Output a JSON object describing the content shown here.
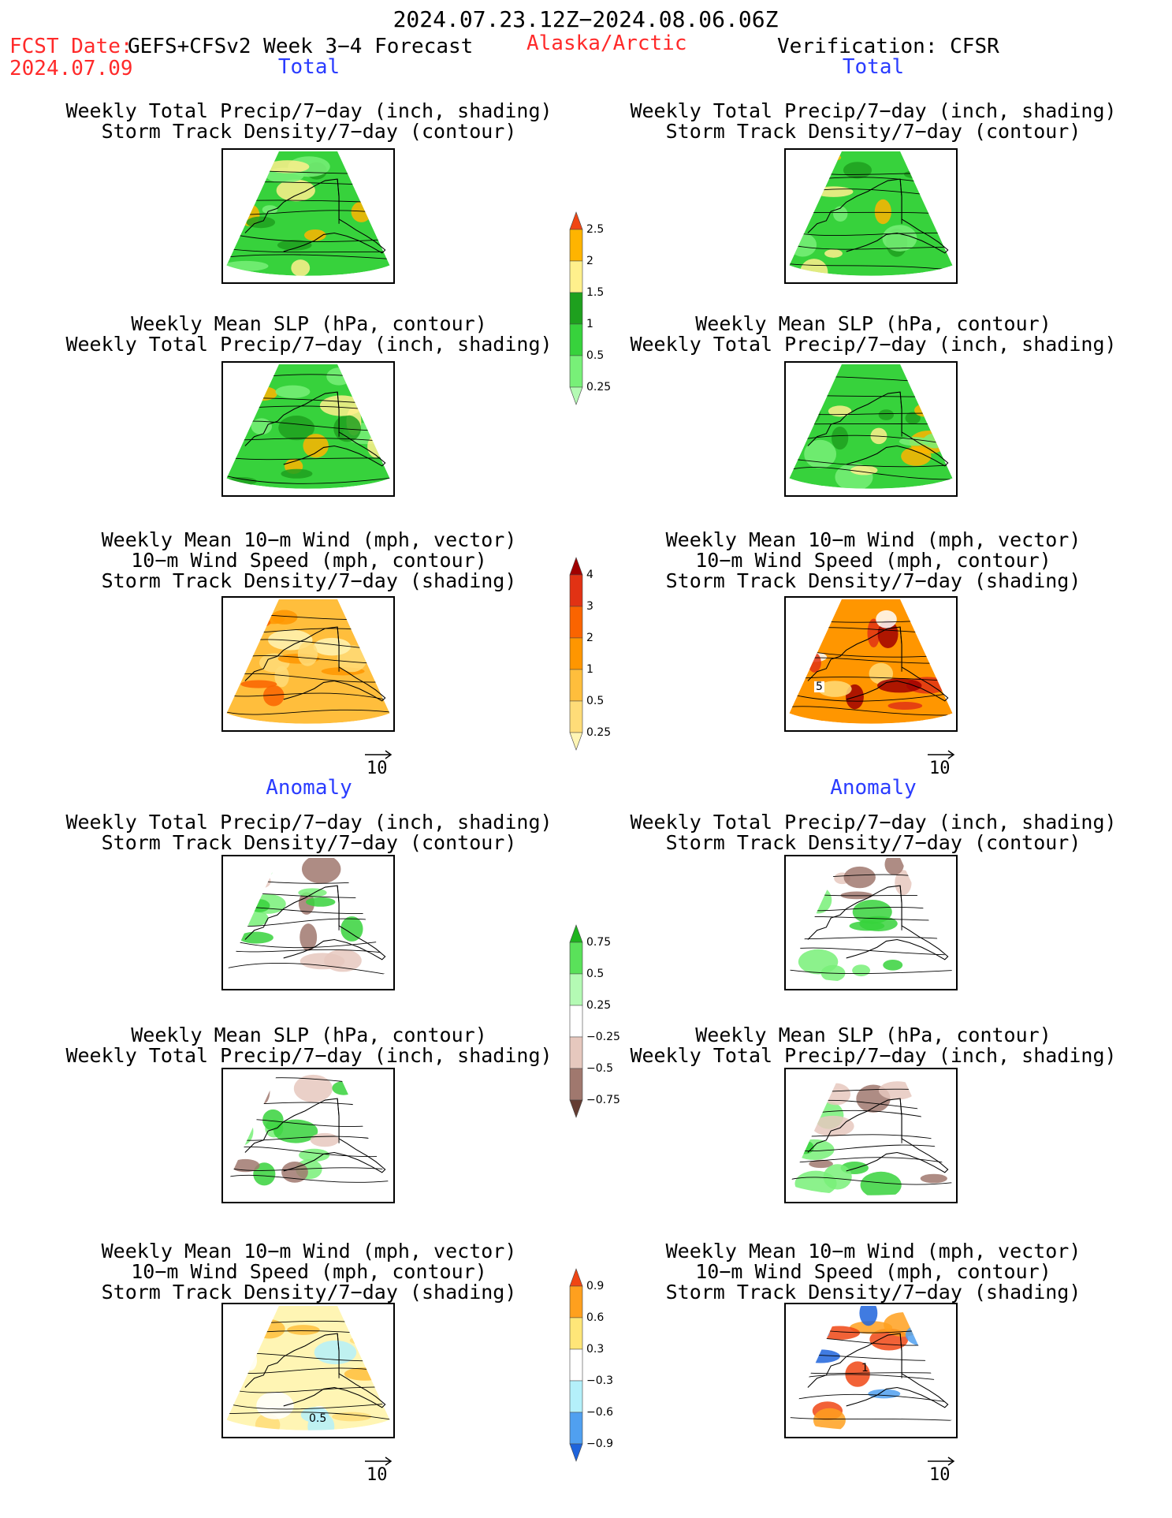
{
  "header": {
    "date_range": "2024.07.23.12Z−2024.08.06.06Z",
    "fcst_label": "FCST Date:",
    "fcst_model": "GEFS+CFSv2 Week 3−4 Forecast",
    "region": "Alaska/Arctic",
    "verification": "Verification: CFSR",
    "fcst_date": "2024.07.09"
  },
  "sections": {
    "total_left": "Total",
    "total_right": "Total",
    "anomaly_left": "Anomaly",
    "anomaly_right": "Anomaly"
  },
  "panels": {
    "p1": [
      "Weekly Total Precip/7−day (inch, shading)",
      "Storm Track Density/7−day (contour)"
    ],
    "p2": [
      "Weekly Mean SLP (hPa, contour)",
      "Weekly Total Precip/7−day (inch, shading)"
    ],
    "p3": [
      "Weekly Mean 10−m Wind (mph, vector)",
      "10−m Wind Speed (mph, contour)",
      "Storm Track Density/7−day (shading)"
    ],
    "p4": [
      "Weekly Total Precip/7−day (inch, shading)",
      "Storm Track Density/7−day (contour)"
    ],
    "p5": [
      "Weekly Mean SLP (hPa, contour)",
      "Weekly Total Precip/7−day (inch, shading)"
    ],
    "p6": [
      "Weekly Mean 10−m Wind (mph, vector)",
      "10−m Wind Speed (mph, contour)",
      "Storm Track Density/7−day (shading)"
    ]
  },
  "vector_scale": "10",
  "map_labels": {
    "total_wind_right": "5",
    "anom_wind_left": "0.5",
    "anom_wind_right": "1"
  },
  "colorbars": {
    "precip_total": {
      "colors": [
        "#b4fab4",
        "#78f078",
        "#37d23c",
        "#1ea01e",
        "#fff08c",
        "#ffb400",
        "#f04614"
      ],
      "labels": [
        "0.25",
        "0.5",
        "1",
        "1.5",
        "2",
        "2.5"
      ]
    },
    "storm_total": {
      "colors": [
        "#fff5b4",
        "#ffdc78",
        "#ffbe3c",
        "#ff9600",
        "#fa6400",
        "#e13214",
        "#a00000"
      ],
      "labels": [
        "0.25",
        "0.5",
        "1",
        "2",
        "3",
        "4"
      ]
    },
    "precip_anom": {
      "colors": [
        "#643c32",
        "#a0786e",
        "#e6c8be",
        "#ffffff",
        "#b4fab4",
        "#5ae15a",
        "#1eb41e"
      ],
      "labels": [
        "−0.75",
        "−0.5",
        "−0.25",
        "0.25",
        "0.5",
        "0.75"
      ]
    },
    "storm_anom": {
      "colors": [
        "#1e64dc",
        "#50a0f0",
        "#b4f0fa",
        "#ffffff",
        "#ffe678",
        "#ffa01e",
        "#f04614"
      ],
      "labels": [
        "−0.9",
        "−0.6",
        "−0.3",
        "0.3",
        "0.6",
        "0.9"
      ]
    }
  }
}
